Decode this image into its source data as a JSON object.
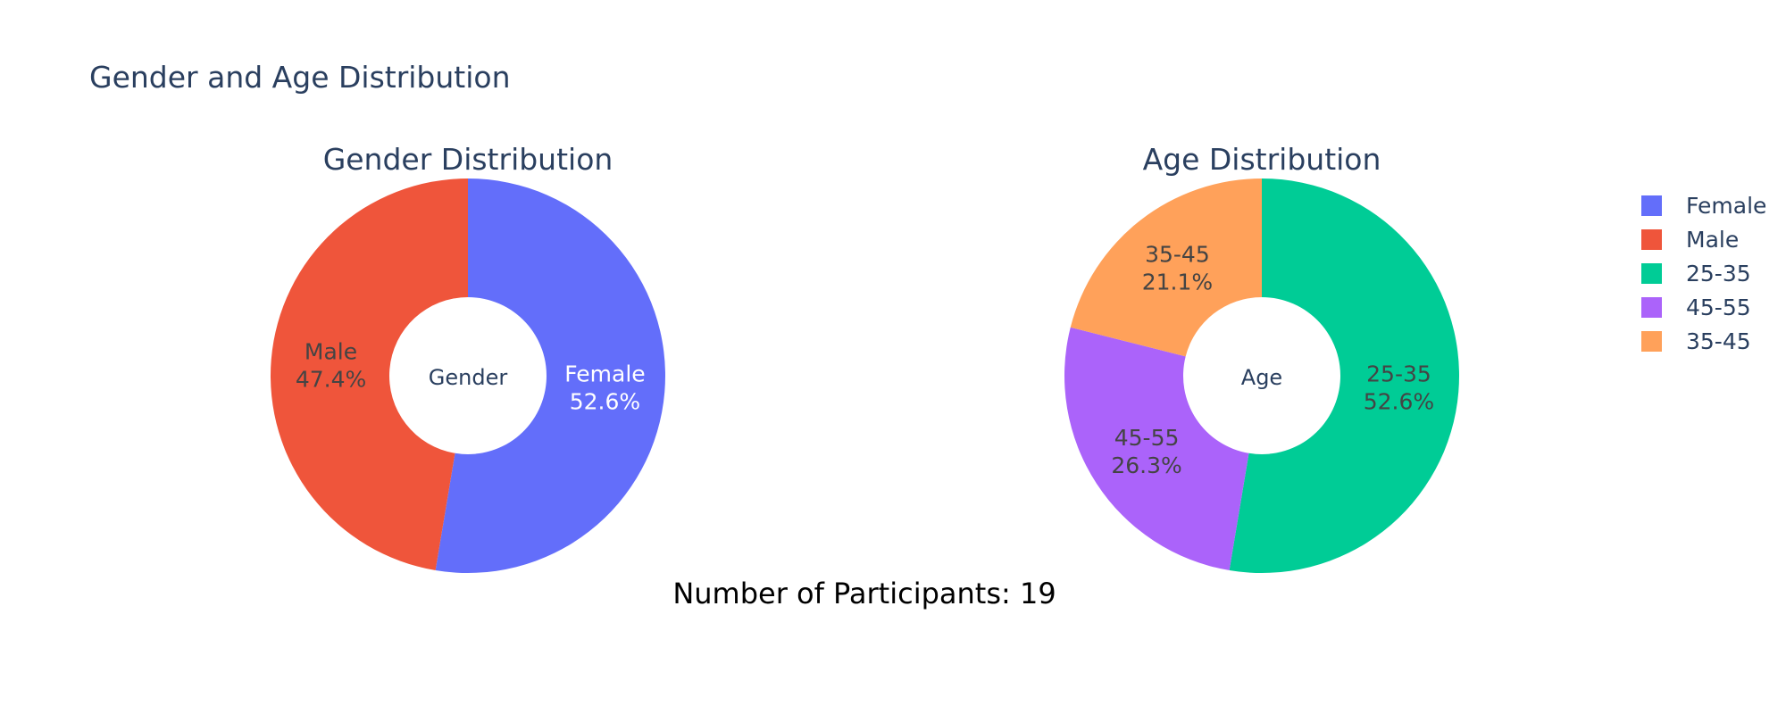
{
  "chart_data": {
    "title": "Gender and Age Distribution",
    "annotation": "Number of Participants: 19",
    "legend_position": "right",
    "charts": [
      {
        "type": "pie",
        "subtitle": "Gender Distribution",
        "hole_label": "Gender",
        "slices": [
          {
            "label": "Female",
            "value": 10,
            "percent_label": "52.6%",
            "color": "#636efa",
            "text_color": "#ffffff"
          },
          {
            "label": "Male",
            "value": 9,
            "percent_label": "47.4%",
            "color": "#ef553b",
            "text_color": "#444444"
          }
        ]
      },
      {
        "type": "pie",
        "subtitle": "Age Distribution",
        "hole_label": "Age",
        "slices": [
          {
            "label": "25-35",
            "value": 10,
            "percent_label": "52.6%",
            "color": "#00cc96",
            "text_color": "#444444"
          },
          {
            "label": "45-55",
            "value": 5,
            "percent_label": "26.3%",
            "color": "#ab63fa",
            "text_color": "#444444"
          },
          {
            "label": "35-45",
            "value": 4,
            "percent_label": "21.1%",
            "color": "#ffa15a",
            "text_color": "#444444"
          }
        ]
      }
    ],
    "legend": [
      {
        "label": "Female",
        "color": "#636efa"
      },
      {
        "label": "Male",
        "color": "#ef553b"
      },
      {
        "label": "25-35",
        "color": "#00cc96"
      },
      {
        "label": "45-55",
        "color": "#ab63fa"
      },
      {
        "label": "35-45",
        "color": "#ffa15a"
      }
    ]
  }
}
